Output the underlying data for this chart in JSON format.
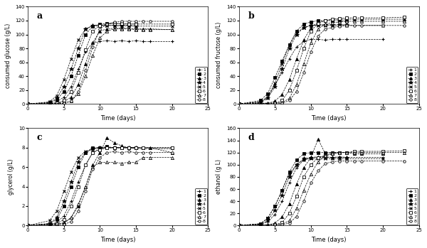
{
  "series_labels": [
    "1",
    "2",
    "3",
    "4",
    "5",
    "6",
    "7",
    "8"
  ],
  "subplot_keys": [
    "glucose",
    "fructose",
    "glycerol",
    "ethanol"
  ],
  "glucose": {
    "title": "a",
    "ylabel": "consumed glucose (g/L)",
    "xlabel": "Time (days)",
    "xlim": [
      0,
      25
    ],
    "ylim": [
      0,
      140
    ],
    "yticks": [
      0,
      20,
      40,
      60,
      80,
      100,
      120,
      140
    ],
    "xticks": [
      0,
      5,
      10,
      15,
      20,
      25
    ],
    "series": [
      {
        "x": [
          0,
          3,
          4,
          5,
          6,
          7,
          8,
          9,
          10,
          11,
          12,
          13,
          14,
          15,
          16,
          17,
          20
        ],
        "y": [
          0,
          1,
          3,
          10,
          25,
          50,
          75,
          88,
          90,
          91,
          90,
          91,
          90,
          91,
          90,
          90,
          90
        ]
      },
      {
        "x": [
          0,
          3,
          4,
          5,
          6,
          7,
          8,
          9,
          10,
          11,
          12,
          13,
          14,
          15
        ],
        "y": [
          0,
          2,
          6,
          18,
          40,
          70,
          100,
          112,
          115,
          116,
          116,
          115,
          115,
          115
        ]
      },
      {
        "x": [
          0,
          4,
          5,
          6,
          7,
          8,
          9,
          10,
          11,
          12,
          13,
          14,
          15,
          16,
          17,
          20
        ],
        "y": [
          0,
          1,
          3,
          10,
          28,
          58,
          88,
          105,
          108,
          109,
          109,
          109,
          108,
          108,
          108,
          107
        ]
      },
      {
        "x": [
          0,
          3,
          4,
          5,
          6,
          7,
          8,
          9,
          10,
          11,
          12,
          13,
          14,
          15
        ],
        "y": [
          0,
          2,
          8,
          25,
          50,
          80,
          108,
          113,
          113,
          113,
          113,
          113,
          113,
          112
        ]
      },
      {
        "x": [
          0,
          3,
          4,
          5,
          6,
          7,
          8,
          9,
          10,
          11,
          12,
          13,
          14,
          15,
          20
        ],
        "y": [
          0,
          3,
          12,
          35,
          65,
          92,
          108,
          112,
          113,
          113,
          113,
          112,
          113,
          112,
          112
        ]
      },
      {
        "x": [
          0,
          4,
          5,
          6,
          7,
          8,
          9,
          10,
          11,
          12,
          13,
          14,
          15,
          20
        ],
        "y": [
          0,
          1,
          5,
          18,
          45,
          78,
          105,
          113,
          115,
          116,
          116,
          115,
          115,
          115
        ]
      },
      {
        "x": [
          0,
          5,
          6,
          7,
          8,
          9,
          10,
          11,
          12,
          13,
          14,
          15,
          16,
          17,
          20
        ],
        "y": [
          0,
          1,
          4,
          15,
          40,
          70,
          95,
          105,
          108,
          108,
          108,
          107,
          107,
          107,
          107
        ]
      },
      {
        "x": [
          0,
          5,
          6,
          7,
          8,
          9,
          10,
          11,
          12,
          13,
          14,
          15,
          16,
          17,
          20
        ],
        "y": [
          0,
          1,
          4,
          18,
          48,
          82,
          108,
          115,
          118,
          119,
          119,
          119,
          119,
          119,
          119
        ]
      }
    ]
  },
  "fructose": {
    "title": "b",
    "ylabel": "consumed fructose (g/L)",
    "xlabel": "Time (days)",
    "xlim": [
      0,
      25
    ],
    "ylim": [
      0,
      140
    ],
    "yticks": [
      0,
      20,
      40,
      60,
      80,
      100,
      120,
      140
    ],
    "xticks": [
      0,
      5,
      10,
      15,
      20,
      25
    ],
    "series": [
      {
        "x": [
          0,
          3,
          4,
          5,
          6,
          7,
          8,
          9,
          10,
          11,
          12,
          13,
          14,
          15,
          20
        ],
        "y": [
          0,
          3,
          10,
          28,
          45,
          65,
          82,
          90,
          93,
          93,
          92,
          93,
          93,
          93,
          93
        ]
      },
      {
        "x": [
          0,
          3,
          4,
          5,
          6,
          7,
          8,
          9,
          10,
          11,
          12,
          13,
          14,
          15
        ],
        "y": [
          0,
          5,
          15,
          38,
          62,
          85,
          105,
          115,
          118,
          120,
          120,
          120,
          120,
          120
        ]
      },
      {
        "x": [
          0,
          4,
          5,
          6,
          7,
          8,
          9,
          10,
          11,
          12,
          13,
          14,
          15,
          16,
          17,
          20,
          23
        ],
        "y": [
          0,
          1,
          4,
          14,
          35,
          65,
          92,
          110,
          118,
          120,
          122,
          122,
          122,
          122,
          122,
          122,
          122
        ]
      },
      {
        "x": [
          0,
          3,
          4,
          5,
          6,
          7,
          8,
          9,
          10,
          11,
          12,
          13,
          14,
          15
        ],
        "y": [
          0,
          2,
          8,
          25,
          50,
          80,
          100,
          110,
          113,
          114,
          114,
          114,
          114,
          114
        ]
      },
      {
        "x": [
          0,
          3,
          4,
          5,
          6,
          7,
          8,
          9,
          10,
          11,
          12,
          13,
          14,
          15,
          20
        ],
        "y": [
          0,
          3,
          10,
          30,
          58,
          85,
          102,
          110,
          113,
          113,
          113,
          113,
          113,
          113,
          113
        ]
      },
      {
        "x": [
          0,
          5,
          6,
          7,
          8,
          9,
          10,
          11,
          12,
          13,
          14,
          15,
          16,
          17,
          20,
          23
        ],
        "y": [
          0,
          1,
          5,
          20,
          48,
          80,
          105,
          116,
          120,
          122,
          123,
          124,
          124,
          124,
          124,
          125
        ]
      },
      {
        "x": [
          0,
          6,
          7,
          8,
          9,
          10,
          11,
          12,
          13,
          14,
          15,
          16,
          17,
          20,
          23
        ],
        "y": [
          0,
          2,
          8,
          28,
          58,
          88,
          108,
          115,
          117,
          118,
          119,
          119,
          119,
          119,
          119
        ]
      },
      {
        "x": [
          0,
          6,
          7,
          8,
          9,
          10,
          11,
          12,
          13,
          14,
          15,
          16,
          17,
          20,
          23
        ],
        "y": [
          0,
          1,
          5,
          18,
          45,
          75,
          98,
          108,
          110,
          112,
          113,
          113,
          113,
          113,
          113
        ]
      }
    ]
  },
  "glycerol": {
    "title": "c",
    "ylabel": "glycerol (g/L)",
    "xlabel": "Time (days)",
    "xlim": [
      0,
      25
    ],
    "ylim": [
      0,
      10
    ],
    "yticks": [
      0,
      2,
      4,
      6,
      8,
      10
    ],
    "xticks": [
      0,
      5,
      10,
      15,
      20,
      25
    ],
    "series": [
      {
        "x": [
          0,
          3,
          4,
          5,
          6,
          7,
          8,
          9,
          10,
          11,
          12,
          13,
          14,
          15,
          20
        ],
        "y": [
          0,
          0.1,
          0.3,
          1.0,
          2.5,
          4.5,
          6.2,
          7.5,
          7.9,
          8.0,
          8.0,
          8.0,
          8.0,
          7.9,
          7.9
        ]
      },
      {
        "x": [
          0,
          3,
          4,
          5,
          6,
          7,
          8,
          9,
          10,
          11,
          12,
          13,
          14,
          15
        ],
        "y": [
          0,
          0.2,
          0.6,
          2.0,
          4.0,
          6.0,
          7.5,
          8.0,
          8.0,
          8.1,
          8.0,
          8.0,
          8.0,
          8.0
        ]
      },
      {
        "x": [
          0,
          4,
          5,
          6,
          7,
          8,
          9,
          10,
          11,
          12,
          13,
          14,
          15,
          16,
          17,
          20
        ],
        "y": [
          0,
          0.1,
          0.3,
          0.8,
          2.0,
          4.0,
          6.2,
          7.5,
          9.0,
          8.5,
          8.2,
          8.0,
          8.0,
          8.0,
          8.0,
          7.5
        ]
      },
      {
        "x": [
          0,
          3,
          4,
          5,
          6,
          7,
          8,
          9,
          10,
          11,
          12,
          13,
          14,
          15
        ],
        "y": [
          0,
          0.2,
          0.8,
          2.5,
          4.5,
          6.5,
          7.5,
          7.9,
          8.0,
          8.0,
          8.0,
          8.0,
          8.0,
          8.0
        ]
      },
      {
        "x": [
          0,
          3,
          4,
          5,
          6,
          7,
          8,
          9,
          10,
          11,
          12,
          13,
          14,
          15,
          20
        ],
        "y": [
          0,
          0.5,
          1.5,
          3.5,
          5.5,
          7.0,
          7.6,
          7.8,
          8.0,
          8.0,
          8.0,
          8.0,
          8.0,
          8.0,
          8.0
        ]
      },
      {
        "x": [
          0,
          4,
          5,
          6,
          7,
          8,
          9,
          10,
          11,
          12,
          13,
          14,
          15,
          16,
          20
        ],
        "y": [
          0,
          0.2,
          0.6,
          2.0,
          4.0,
          6.2,
          7.5,
          7.8,
          8.0,
          8.0,
          8.0,
          8.0,
          8.0,
          8.0,
          8.0
        ]
      },
      {
        "x": [
          0,
          5,
          6,
          7,
          8,
          9,
          10,
          11,
          12,
          13,
          14,
          15,
          16,
          17,
          20
        ],
        "y": [
          0,
          0.2,
          0.8,
          2.2,
          4.0,
          6.0,
          6.5,
          6.5,
          6.5,
          6.4,
          6.5,
          6.5,
          7.0,
          7.0,
          7.0
        ]
      },
      {
        "x": [
          0,
          5,
          6,
          7,
          8,
          9,
          10,
          11,
          12,
          13,
          14,
          15,
          16,
          17,
          20
        ],
        "y": [
          0,
          0.1,
          0.4,
          1.5,
          3.5,
          5.8,
          7.0,
          7.5,
          7.6,
          7.5,
          7.6,
          7.5,
          7.5,
          7.5,
          7.5
        ]
      }
    ]
  },
  "ethanol": {
    "title": "d",
    "ylabel": "ethanol (g L)",
    "xlabel": "Time (days)",
    "xlim": [
      0,
      25
    ],
    "ylim": [
      0,
      160
    ],
    "yticks": [
      0,
      20,
      40,
      60,
      80,
      100,
      120,
      140,
      160
    ],
    "xticks": [
      0,
      5,
      10,
      15,
      20,
      25
    ],
    "series": [
      {
        "x": [
          0,
          3,
          4,
          5,
          6,
          7,
          8,
          9,
          10,
          11,
          12,
          13,
          14,
          15,
          20
        ],
        "y": [
          0,
          2,
          6,
          18,
          40,
          70,
          95,
          108,
          112,
          113,
          113,
          112,
          113,
          112,
          112
        ]
      },
      {
        "x": [
          0,
          3,
          4,
          5,
          6,
          7,
          8,
          9,
          10,
          11,
          12,
          13,
          14,
          15
        ],
        "y": [
          0,
          3,
          12,
          32,
          58,
          88,
          108,
          118,
          120,
          120,
          120,
          120,
          120,
          120
        ]
      },
      {
        "x": [
          0,
          4,
          5,
          6,
          7,
          8,
          9,
          10,
          11,
          12,
          13,
          14,
          15,
          16,
          17,
          20
        ],
        "y": [
          0,
          1,
          4,
          14,
          36,
          68,
          95,
          112,
          142,
          118,
          120,
          120,
          120,
          118,
          118,
          118
        ]
      },
      {
        "x": [
          0,
          3,
          4,
          5,
          6,
          7,
          8,
          9,
          10,
          11,
          12,
          13,
          14,
          15
        ],
        "y": [
          0,
          2,
          8,
          25,
          50,
          80,
          100,
          110,
          112,
          112,
          112,
          112,
          112,
          112
        ]
      },
      {
        "x": [
          0,
          3,
          4,
          5,
          6,
          7,
          8,
          9,
          10,
          11,
          12,
          13,
          14,
          15,
          20
        ],
        "y": [
          0,
          3,
          12,
          32,
          58,
          85,
          100,
          108,
          110,
          110,
          110,
          110,
          110,
          110,
          110
        ]
      },
      {
        "x": [
          0,
          5,
          6,
          7,
          8,
          9,
          10,
          11,
          12,
          13,
          14,
          15,
          16,
          17,
          20,
          23
        ],
        "y": [
          0,
          1,
          5,
          20,
          48,
          80,
          100,
          112,
          115,
          118,
          120,
          120,
          122,
          122,
          122,
          123
        ]
      },
      {
        "x": [
          0,
          6,
          7,
          8,
          9,
          10,
          11,
          12,
          13,
          14,
          15,
          16,
          17,
          20,
          23
        ],
        "y": [
          0,
          2,
          8,
          28,
          58,
          85,
          105,
          115,
          118,
          120,
          120,
          120,
          120,
          120,
          120
        ]
      },
      {
        "x": [
          0,
          6,
          7,
          8,
          9,
          10,
          11,
          12,
          13,
          14,
          15,
          16,
          17,
          20,
          23
        ],
        "y": [
          0,
          1,
          4,
          15,
          40,
          70,
          90,
          102,
          105,
          106,
          106,
          106,
          106,
          106,
          106
        ]
      }
    ]
  }
}
